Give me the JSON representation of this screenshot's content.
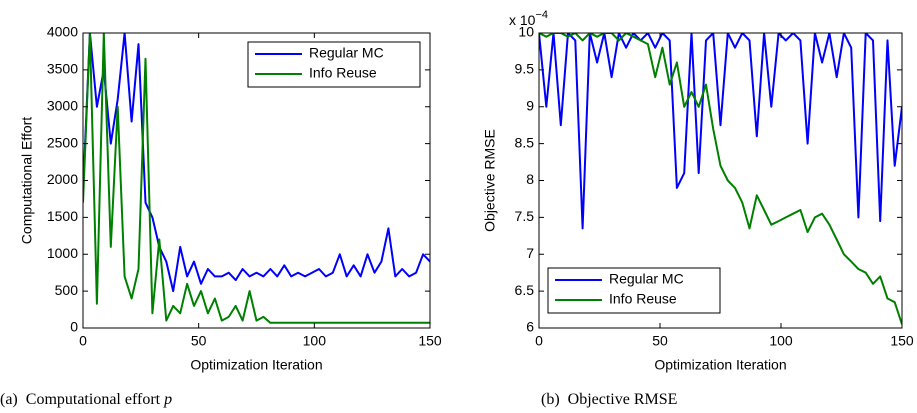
{
  "chart_data": [
    {
      "type": "line",
      "caption_label": "(a)",
      "caption": "Computational effort",
      "caption_var": "p",
      "xlabel": "Optimization Iteration",
      "ylabel": "Computational Effort",
      "xlim": [
        0,
        150
      ],
      "xticks": [
        0,
        50,
        100,
        150
      ],
      "ylim": [
        0,
        4000
      ],
      "yticks": [
        0,
        500,
        1000,
        1500,
        2000,
        2500,
        3000,
        3500,
        4000
      ],
      "legend": "upper right",
      "x": [
        0,
        3,
        6,
        9,
        12,
        15,
        18,
        21,
        24,
        27,
        30,
        33,
        36,
        39,
        42,
        45,
        48,
        51,
        54,
        57,
        60,
        63,
        66,
        69,
        72,
        75,
        78,
        81,
        84,
        87,
        90,
        93,
        96,
        99,
        102,
        105,
        108,
        111,
        114,
        117,
        120,
        123,
        126,
        129,
        132,
        135,
        138,
        141,
        144,
        147,
        150
      ],
      "series": [
        {
          "name": "Regular MC",
          "color": "#0000ff",
          "values": [
            1850,
            4000,
            3000,
            3500,
            2500,
            3100,
            4000,
            2800,
            3850,
            1700,
            1500,
            1100,
            900,
            500,
            1100,
            700,
            900,
            600,
            800,
            700,
            700,
            750,
            650,
            800,
            700,
            750,
            700,
            800,
            700,
            850,
            700,
            750,
            700,
            750,
            800,
            700,
            750,
            1000,
            700,
            850,
            700,
            1000,
            750,
            900,
            1350,
            700,
            800,
            700,
            750,
            1000,
            900
          ]
        },
        {
          "name": "Info Reuse",
          "color": "#008000",
          "values": [
            1700,
            4000,
            330,
            4000,
            1100,
            3000,
            700,
            400,
            800,
            3650,
            200,
            1200,
            100,
            300,
            200,
            600,
            300,
            500,
            200,
            400,
            100,
            150,
            300,
            100,
            500,
            100,
            150,
            70,
            70,
            70,
            70,
            70,
            70,
            70,
            70,
            70,
            70,
            70,
            70,
            70,
            70,
            70,
            70,
            70,
            70,
            70,
            70,
            70,
            70,
            70,
            70
          ]
        }
      ]
    },
    {
      "type": "line",
      "caption_label": "(b)",
      "caption": "Objective RMSE",
      "xlabel": "Optimization Iteration",
      "ylabel": "Objective RMSE",
      "scale_label": "x 10",
      "scale_exponent": "−4",
      "xlim": [
        0,
        150
      ],
      "xticks": [
        0,
        50,
        100,
        150
      ],
      "ylim": [
        6,
        10
      ],
      "yticks": [
        6,
        6.5,
        7,
        7.5,
        8,
        8.5,
        9,
        9.5,
        10
      ],
      "legend": "lower left",
      "x": [
        0,
        3,
        6,
        9,
        12,
        15,
        18,
        21,
        24,
        27,
        30,
        33,
        36,
        39,
        42,
        45,
        48,
        51,
        54,
        57,
        60,
        63,
        66,
        69,
        72,
        75,
        78,
        81,
        84,
        87,
        90,
        93,
        96,
        99,
        102,
        105,
        108,
        111,
        114,
        117,
        120,
        123,
        126,
        129,
        132,
        135,
        138,
        141,
        144,
        147,
        150
      ],
      "series": [
        {
          "name": "Regular MC",
          "color": "#0000ff",
          "values": [
            10,
            9.0,
            10,
            8.75,
            10,
            9.9,
            7.35,
            10,
            9.6,
            10,
            9.4,
            10,
            9.8,
            10,
            9.9,
            10,
            9.8,
            10,
            9.9,
            7.9,
            8.1,
            10,
            8.1,
            9.9,
            10,
            8.75,
            10,
            9.8,
            10,
            9.9,
            8.6,
            10,
            9.0,
            10,
            9.9,
            10,
            9.9,
            8.5,
            10,
            9.6,
            10,
            9.4,
            10,
            9.8,
            7.5,
            10,
            9.9,
            7.45,
            9.9,
            8.2,
            9.0
          ]
        },
        {
          "name": "Info Reuse",
          "color": "#008000",
          "values": [
            10,
            9.95,
            10,
            10,
            9.95,
            10,
            9.9,
            10,
            9.95,
            10,
            10,
            9.9,
            10,
            9.95,
            9.9,
            9.85,
            9.4,
            9.8,
            9.3,
            9.6,
            9.0,
            9.2,
            9.0,
            9.3,
            8.7,
            8.2,
            8.0,
            7.9,
            7.7,
            7.35,
            7.8,
            7.6,
            7.4,
            7.45,
            7.5,
            7.55,
            7.6,
            7.3,
            7.5,
            7.55,
            7.4,
            7.2,
            7.0,
            6.9,
            6.8,
            6.75,
            6.6,
            6.7,
            6.4,
            6.35,
            6.05
          ]
        }
      ]
    }
  ]
}
